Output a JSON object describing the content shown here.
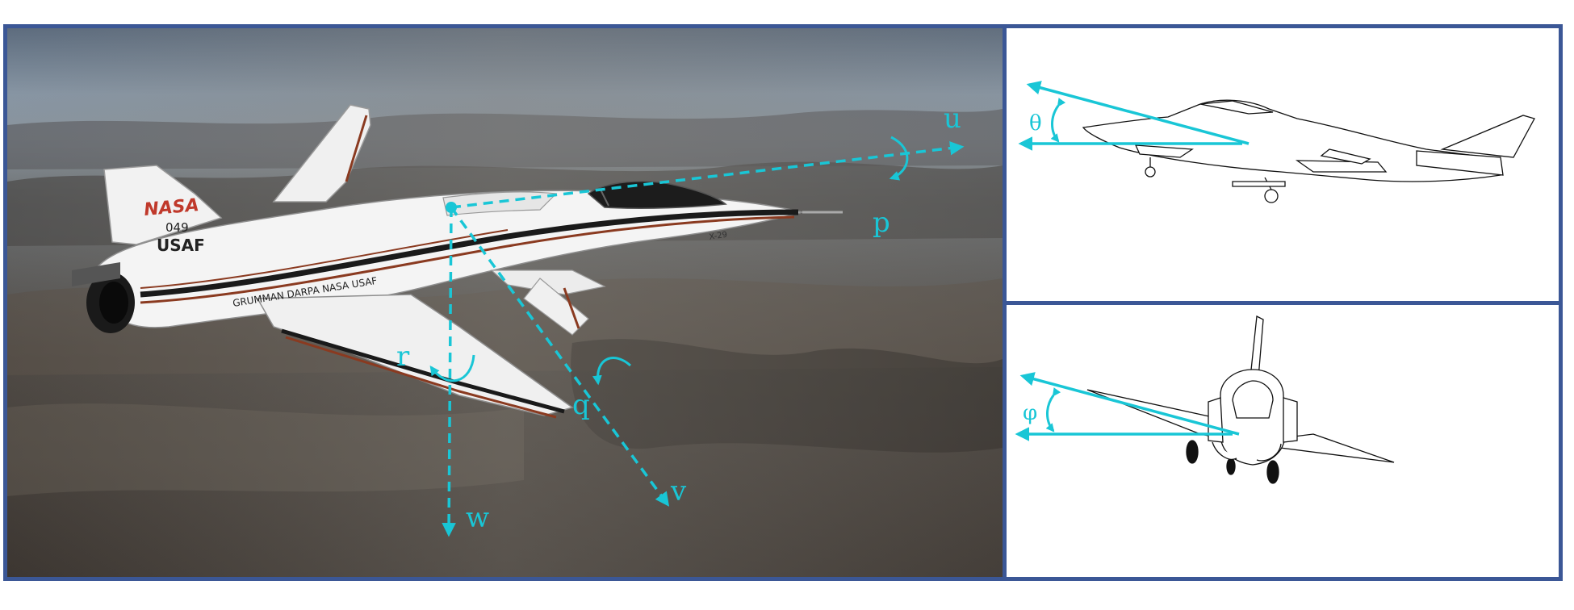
{
  "photo": {
    "aircraft_markings": {
      "nasa_logo": "NASA",
      "tail_number": "049",
      "usaf": "USAF",
      "fuselage_stripe": "GRUMMAN  DARPA  NASA  USAF",
      "nose_designation": "X-29"
    },
    "axes": {
      "u": "u",
      "v": "v",
      "w": "w",
      "p": "p",
      "q": "q",
      "r": "r"
    }
  },
  "pitch_panel": {
    "angle_label": "θ"
  },
  "roll_panel": {
    "angle_label": "φ"
  },
  "colors": {
    "frame": "#3b5796",
    "annotation": "#19c6d6",
    "sky": "#7d8a98",
    "terrain": "#4b4540"
  }
}
